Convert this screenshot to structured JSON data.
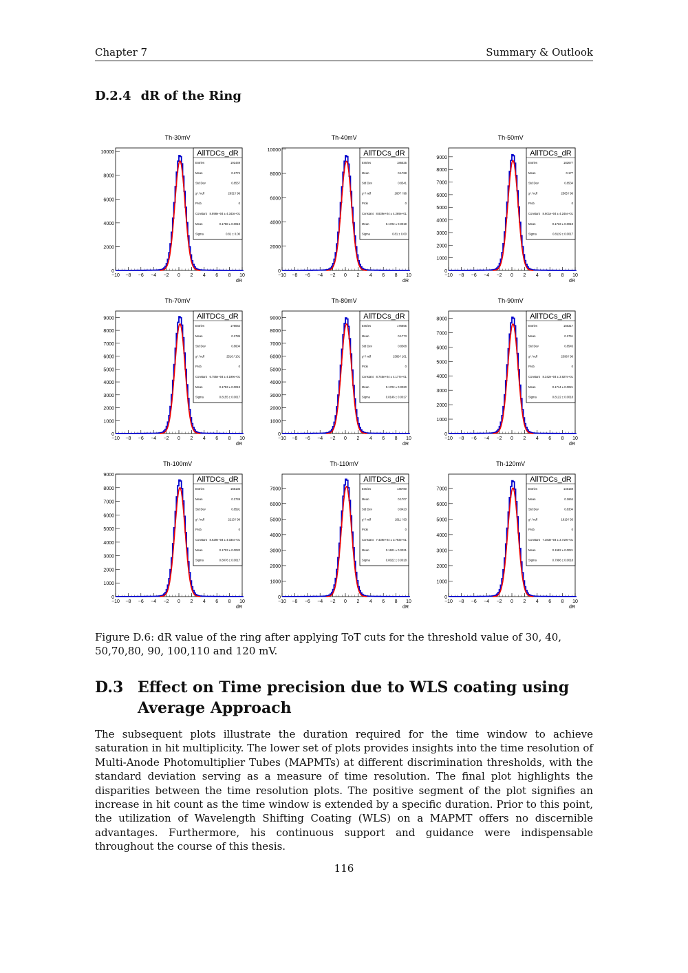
{
  "header": {
    "left": "Chapter 7",
    "right": "Summary & Outlook"
  },
  "subsection": {
    "number": "D.2.4",
    "title": "dR of the Ring"
  },
  "stat_labels": [
    "Entries",
    "Mean",
    "Std Dev",
    "χ² / ndf",
    "Prob",
    "Constant",
    "Mean",
    "Sigma"
  ],
  "chart_data": [
    {
      "type": "histogram",
      "title": "Th-30mV",
      "hist_name": "AllTDCs_dR",
      "xlabel": "dR",
      "xlim": [
        -10,
        10
      ],
      "ylim": [
        0,
        10300
      ],
      "yticks": [
        0,
        2000,
        4000,
        6000,
        8000,
        10000
      ],
      "peak": 9700,
      "fit_peak": 9200,
      "stats": [
        "191449",
        "0.1774",
        "0.8557",
        "2632 / 96",
        "0",
        "8.898e+04 ± 4.343e+01",
        "0.1758 ± 0.0019",
        "0.81 ± 0.00"
      ]
    },
    {
      "type": "histogram",
      "title": "Th-40mV",
      "hist_name": "AllTDCs_dR",
      "xlabel": "dR",
      "xlim": [
        -10,
        10
      ],
      "ylim": [
        0,
        10100
      ],
      "yticks": [
        0,
        2000,
        4000,
        6000,
        8000,
        10000
      ],
      "peak": 9500,
      "fit_peak": 9000,
      "stats": [
        "186525",
        "0.1768",
        "0.8541",
        "2607 / 96",
        "0",
        "8.839e+04 ± 4.269e+01",
        "0.1722 ± 0.0019",
        "0.81 ± 0.00"
      ]
    },
    {
      "type": "histogram",
      "title": "Th-50mV",
      "hist_name": "AllTDCs_dR",
      "xlabel": "dR",
      "xlim": [
        -10,
        10
      ],
      "ylim": [
        0,
        9700
      ],
      "yticks": [
        0,
        1000,
        2000,
        3000,
        4000,
        5000,
        6000,
        7000,
        8000,
        9000
      ],
      "peak": 9200,
      "fit_peak": 8700,
      "stats": [
        "182677",
        "0.177",
        "0.8534",
        "2565 / 96",
        "0",
        "8.601e+04 ± 4.244e+01",
        "0.1733 ± 0.0019",
        "0.8119 ± 0.0017"
      ]
    },
    {
      "type": "histogram",
      "title": "Th-70mV",
      "hist_name": "AllTDCs_dR",
      "xlabel": "dR",
      "xlim": [
        -10,
        10
      ],
      "ylim": [
        0,
        9500
      ],
      "yticks": [
        0,
        1000,
        2000,
        3000,
        4000,
        5000,
        6000,
        7000,
        8000,
        9000
      ],
      "peak": 9100,
      "fit_peak": 8500,
      "stats": [
        "178062",
        "0.1785",
        "0.8604",
        "2516 / 101",
        "0",
        "6.755e+04 ± 4.199e+01",
        "0.1753 ± 0.0019",
        "0.8155 ± 0.0017"
      ]
    },
    {
      "type": "histogram",
      "title": "Th-80mV",
      "hist_name": "AllTDCs_dR",
      "xlabel": "dR",
      "xlim": [
        -10,
        10
      ],
      "ylim": [
        0,
        9500
      ],
      "yticks": [
        0,
        1000,
        2000,
        3000,
        4000,
        5000,
        6000,
        7000,
        8000,
        9000
      ],
      "peak": 9000,
      "fit_peak": 8500,
      "stats": [
        "176855",
        "0.1773",
        "0.8568",
        "2389 / 101",
        "0",
        "8.745e+04 ± 4.177e+01",
        "0.1722 ± 0.0020",
        "0.8146 ± 0.0017"
      ]
    },
    {
      "type": "histogram",
      "title": "Th-90mV",
      "hist_name": "AllTDCs_dR",
      "xlabel": "dR",
      "xlim": [
        -10,
        10
      ],
      "ylim": [
        0,
        8500
      ],
      "yticks": [
        0,
        1000,
        2000,
        3000,
        4000,
        5000,
        6000,
        7000,
        8000
      ],
      "peak": 8100,
      "fit_peak": 7600,
      "stats": [
        "156317",
        "0.1761",
        "0.8545",
        "2398 / 96",
        "0",
        "8.342e+04 ± 3.927e+01",
        "0.1714 ± 0.0021",
        "0.8122 ± 0.0018"
      ]
    },
    {
      "type": "histogram",
      "title": "Th-100mV",
      "hist_name": "AllTDCs_dR",
      "xlabel": "dR",
      "xlim": [
        -10,
        10
      ],
      "ylim": [
        0,
        9000
      ],
      "yticks": [
        0,
        1000,
        2000,
        3000,
        4000,
        5000,
        6000,
        7000,
        8000,
        9000
      ],
      "peak": 8600,
      "fit_peak": 8000,
      "stats": [
        "165136",
        "0.1749",
        "0.8591",
        "2213 / 99",
        "0",
        "8.629e+04 ± 4.034e+01",
        "0.1703 ± 0.0020",
        "0.8076 ± 0.0017"
      ]
    },
    {
      "type": "histogram",
      "title": "Th-110mV",
      "hist_name": "AllTDCs_dR",
      "xlabel": "dR",
      "xlim": [
        -10,
        10
      ],
      "ylim": [
        0,
        7900
      ],
      "yticks": [
        0,
        1000,
        2000,
        3000,
        4000,
        5000,
        6000,
        7000
      ],
      "peak": 7600,
      "fit_peak": 7100,
      "stats": [
        "145780",
        "0.1707",
        "0.8423",
        "1911 / 93",
        "0",
        "7.439e+04 ± 3.793e+01",
        "0.1621 ± 0.0021",
        "0.8022 ± 0.0018"
      ]
    },
    {
      "type": "histogram",
      "title": "Th-120mV",
      "hist_name": "AllTDCs_dR",
      "xlabel": "dR",
      "xlim": [
        -10,
        10
      ],
      "ylim": [
        0,
        7900
      ],
      "yticks": [
        0,
        1000,
        2000,
        3000,
        4000,
        5000,
        6000,
        7000
      ],
      "peak": 7500,
      "fit_peak": 7000,
      "stats": [
        "146159",
        "0.1664",
        "0.8304",
        "1819 / 93",
        "0",
        "7.383e+04 ± 3.719e+01",
        "0.1582 ± 0.0021",
        "0.7996 ± 0.0018"
      ]
    }
  ],
  "xticks": [
    "−10",
    "−8",
    "−6",
    "−4",
    "−2",
    "0",
    "2",
    "4",
    "6",
    "8",
    "10"
  ],
  "caption": "Figure D.6: dR value of the ring after applying ToT cuts for the threshold value of 30, 40, 50,70,80, 90, 100,110 and 120 mV.",
  "section": {
    "number": "D.3",
    "title": "Effect on Time precision due to WLS coating using Average Approach"
  },
  "body": "The subsequent plots illustrate the duration required for the time window to achieve saturation in hit multiplicity. The lower set of plots provides insights into the time resolution of Multi-Anode Photomultiplier Tubes (MAPMTs) at different discrimination thresholds, with the standard deviation serving as a measure of time resolution. The final plot highlights the disparities between the time resolution plots. The positive segment of the plot signifies an increase in hit count as the time window is extended by a specific duration. Prior to this point, the utilization of Wavelength Shifting Coating (WLS) on a MAPMT offers no discernible advantages. Furthermore, his continuous support and guidance were indispensable throughout the course of this thesis.",
  "page_number": "116",
  "colors": {
    "data": "#0000cc",
    "fit": "#ee0000"
  }
}
